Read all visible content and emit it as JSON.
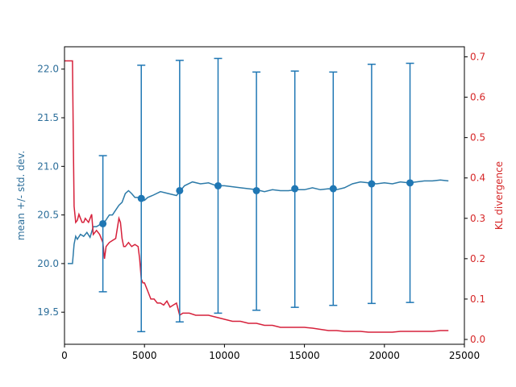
{
  "chart_data": {
    "type": "line",
    "title": "",
    "xlabel": "",
    "xlim": [
      0,
      25000
    ],
    "x_ticks": [
      0,
      5000,
      10000,
      15000,
      20000,
      25000
    ],
    "x_tick_labels": [
      "0",
      "5000",
      "10000",
      "15000",
      "20000",
      "25000"
    ],
    "left_axis": {
      "label": "mean +/- std. dev.",
      "color": "#2c6e9a",
      "ylim": [
        19.17,
        22.23
      ],
      "ticks": [
        19.5,
        20.0,
        20.5,
        21.0,
        21.5,
        22.0
      ],
      "tick_labels": [
        "19.5",
        "20.0",
        "20.5",
        "21.0",
        "21.5",
        "22.0"
      ]
    },
    "right_axis": {
      "label": "KL divergence",
      "color": "#d62728",
      "ylim": [
        -0.012,
        0.725
      ],
      "ticks": [
        0.0,
        0.1,
        0.2,
        0.3,
        0.4,
        0.5,
        0.6,
        0.7
      ],
      "tick_labels": [
        "0.0",
        "0.1",
        "0.2",
        "0.3",
        "0.4",
        "0.5",
        "0.6",
        "0.7"
      ]
    },
    "series": [
      {
        "axis": "left",
        "color": "#2c7aa8",
        "x": [
          200,
          500,
          600,
          700,
          800,
          1000,
          1200,
          1400,
          1600,
          1800,
          2000,
          2200,
          2400,
          2600,
          2800,
          3000,
          3200,
          3400,
          3600,
          3800,
          4000,
          4200,
          4400,
          4600,
          4800,
          5000,
          5200,
          5500,
          6000,
          6500,
          7000,
          7200,
          7500,
          8000,
          8500,
          9000,
          9500,
          10000,
          11000,
          12000,
          12500,
          13000,
          13500,
          14000,
          14500,
          15000,
          15500,
          16000,
          16500,
          17000,
          17500,
          18000,
          18500,
          19000,
          19500,
          20000,
          20500,
          21000,
          21500,
          22000,
          22500,
          23000,
          23500,
          24000
        ],
        "y": [
          20.0,
          20.0,
          20.2,
          20.28,
          20.25,
          20.3,
          20.28,
          20.32,
          20.27,
          20.38,
          20.38,
          20.4,
          20.4,
          20.45,
          20.5,
          20.5,
          20.55,
          20.6,
          20.63,
          20.72,
          20.75,
          20.72,
          20.68,
          20.68,
          20.66,
          20.65,
          20.68,
          20.7,
          20.74,
          20.72,
          20.7,
          20.74,
          20.8,
          20.84,
          20.82,
          20.83,
          20.8,
          20.8,
          20.78,
          20.76,
          20.74,
          20.76,
          20.75,
          20.75,
          20.76,
          20.76,
          20.78,
          20.76,
          20.77,
          20.76,
          20.78,
          20.82,
          20.84,
          20.83,
          20.82,
          20.83,
          20.82,
          20.84,
          20.83,
          20.84,
          20.85,
          20.85,
          20.86,
          20.85
        ]
      },
      {
        "axis": "right",
        "color": "#d6213b",
        "x": [
          0,
          500,
          550,
          600,
          700,
          800,
          900,
          1000,
          1100,
          1200,
          1300,
          1500,
          1700,
          1800,
          2000,
          2200,
          2400,
          2500,
          2600,
          2800,
          3000,
          3200,
          3400,
          3500,
          3600,
          3700,
          3800,
          4000,
          4200,
          4400,
          4600,
          4700,
          4800,
          4900,
          5000,
          5200,
          5400,
          5600,
          5800,
          6000,
          6200,
          6400,
          6600,
          6800,
          7000,
          7200,
          7400,
          7800,
          8200,
          8600,
          9000,
          9500,
          10000,
          10500,
          11000,
          11500,
          12000,
          12500,
          13000,
          13500,
          14000,
          14500,
          15000,
          15500,
          16000,
          16500,
          17000,
          17500,
          18000,
          18500,
          19000,
          19500,
          20000,
          20500,
          21000,
          21500,
          22000,
          22500,
          23000,
          23500,
          24000
        ],
        "y": [
          0.69,
          0.69,
          0.5,
          0.33,
          0.29,
          0.295,
          0.31,
          0.3,
          0.29,
          0.29,
          0.3,
          0.29,
          0.31,
          0.26,
          0.27,
          0.26,
          0.24,
          0.2,
          0.23,
          0.24,
          0.245,
          0.25,
          0.3,
          0.29,
          0.25,
          0.23,
          0.23,
          0.24,
          0.23,
          0.235,
          0.23,
          0.2,
          0.15,
          0.14,
          0.14,
          0.12,
          0.1,
          0.1,
          0.09,
          0.09,
          0.085,
          0.095,
          0.08,
          0.085,
          0.09,
          0.06,
          0.065,
          0.065,
          0.06,
          0.06,
          0.06,
          0.055,
          0.05,
          0.045,
          0.045,
          0.04,
          0.04,
          0.035,
          0.035,
          0.03,
          0.03,
          0.03,
          0.03,
          0.028,
          0.025,
          0.022,
          0.022,
          0.02,
          0.02,
          0.02,
          0.018,
          0.018,
          0.018,
          0.018,
          0.02,
          0.02,
          0.02,
          0.02,
          0.02,
          0.022,
          0.022
        ]
      }
    ],
    "errorbars": {
      "axis": "left",
      "color": "#1f77b4",
      "points": [
        {
          "x": 2400,
          "mean": 20.41,
          "low": 19.71,
          "high": 21.11
        },
        {
          "x": 4800,
          "mean": 20.67,
          "low": 19.3,
          "high": 22.04
        },
        {
          "x": 7200,
          "mean": 20.75,
          "low": 19.4,
          "high": 22.09
        },
        {
          "x": 9600,
          "mean": 20.8,
          "low": 19.49,
          "high": 22.11
        },
        {
          "x": 12000,
          "mean": 20.75,
          "low": 19.52,
          "high": 21.97
        },
        {
          "x": 14400,
          "mean": 20.77,
          "low": 19.55,
          "high": 21.98
        },
        {
          "x": 16800,
          "mean": 20.77,
          "low": 19.57,
          "high": 21.97
        },
        {
          "x": 19200,
          "mean": 20.82,
          "low": 19.59,
          "high": 22.05
        },
        {
          "x": 21600,
          "mean": 20.83,
          "low": 19.6,
          "high": 22.06
        }
      ]
    }
  }
}
